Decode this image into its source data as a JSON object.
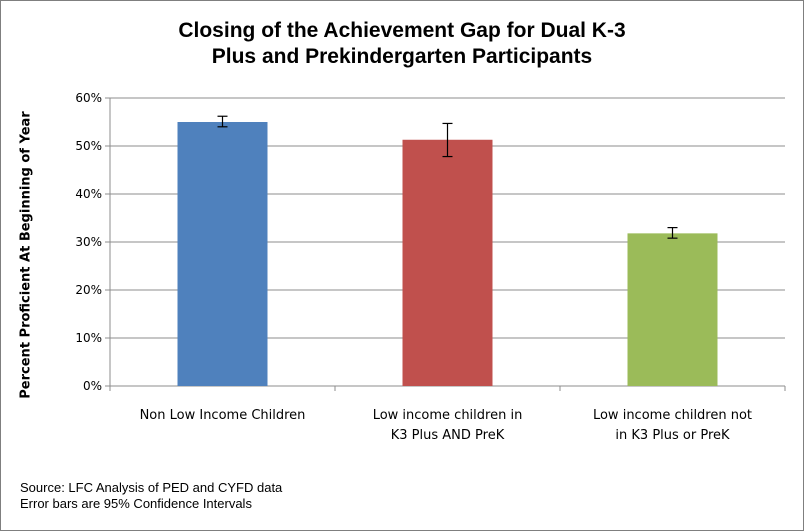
{
  "chart_data": {
    "type": "bar",
    "title_lines": [
      "Closing of the Achievement Gap for Dual K-3",
      "Plus and Prekindergarten Participants"
    ],
    "ylabel": "Percent Proficient At Beginning of Year",
    "ylim": [
      0,
      0.6
    ],
    "yticks": [
      "0%",
      "10%",
      "20%",
      "30%",
      "40%",
      "50%",
      "60%"
    ],
    "categories": [
      {
        "lines": [
          "Non Low Income Children"
        ]
      },
      {
        "lines": [
          "Low income children in",
          "K3 Plus AND PreK"
        ]
      },
      {
        "lines": [
          "Low income children not",
          "in K3 Plus or PreK"
        ]
      }
    ],
    "values": [
      0.55,
      0.513,
      0.318
    ],
    "error_low": [
      0.54,
      0.478,
      0.308
    ],
    "error_high": [
      0.562,
      0.547,
      0.33
    ],
    "colors": [
      "#4f81bd",
      "#c0504d",
      "#9bbb59"
    ],
    "grid": true
  },
  "notes": [
    "Source: LFC Analysis of PED and CYFD data",
    "Error bars are 95% Confidence Intervals"
  ]
}
